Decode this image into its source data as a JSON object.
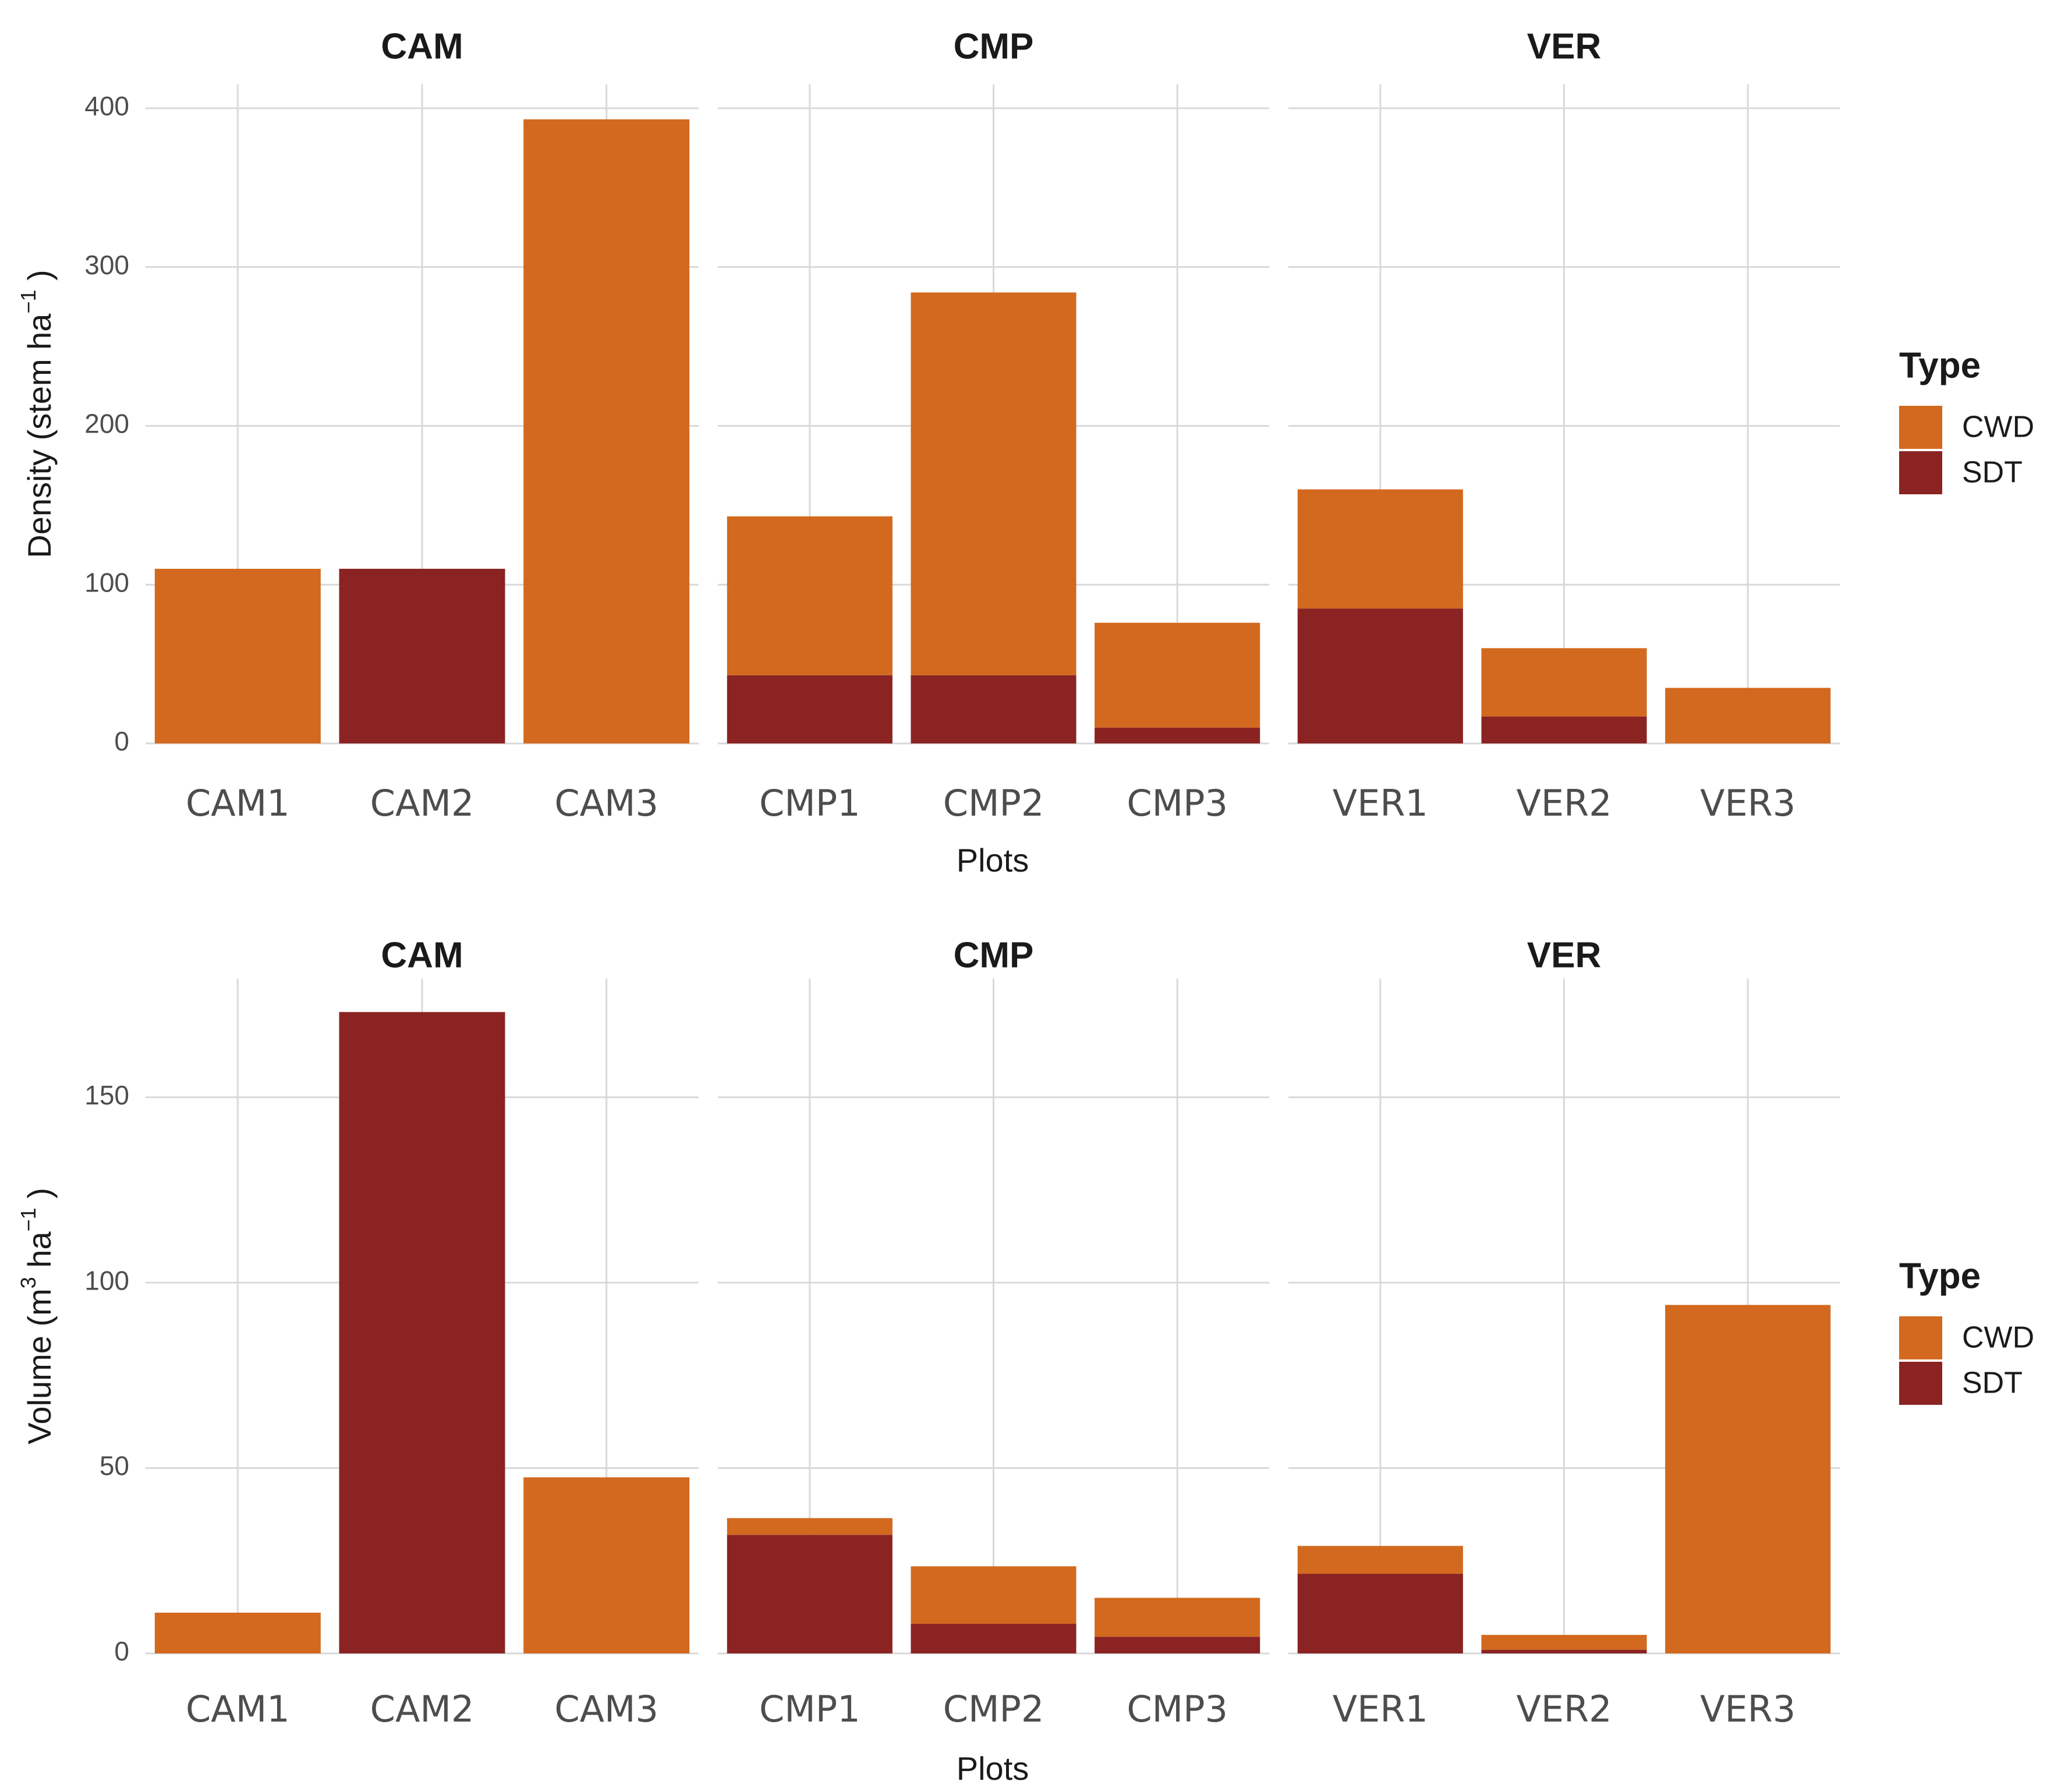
{
  "colors": {
    "CWD": "#d2691e",
    "SDT": "#8b2323"
  },
  "chart_data": [
    {
      "type": "bar",
      "stacked": true,
      "xlabel": "Plots",
      "ylabel_main": "Density (stem ha",
      "ylabel_sup": "−1",
      "ylabel_end": " )",
      "ylim": [
        0,
        415
      ],
      "yticks": [
        0,
        100,
        200,
        300,
        400
      ],
      "legend": {
        "title": "Type",
        "entries": [
          "CWD",
          "SDT"
        ],
        "position": "right"
      },
      "facets": [
        {
          "name": "CAM",
          "categories": [
            "CAM1",
            "CAM2",
            "CAM3"
          ],
          "series": [
            {
              "name": "SDT",
              "values": [
                0,
                110,
                0
              ]
            },
            {
              "name": "CWD",
              "values": [
                110,
                0,
                393
              ]
            }
          ]
        },
        {
          "name": "CMP",
          "categories": [
            "CMP1",
            "CMP2",
            "CMP3"
          ],
          "series": [
            {
              "name": "SDT",
              "values": [
                43,
                43,
                10
              ]
            },
            {
              "name": "CWD",
              "values": [
                100,
                241,
                66
              ]
            }
          ]
        },
        {
          "name": "VER",
          "categories": [
            "VER1",
            "VER2",
            "VER3"
          ],
          "series": [
            {
              "name": "SDT",
              "values": [
                85,
                17,
                0
              ]
            },
            {
              "name": "CWD",
              "values": [
                75,
                43,
                35
              ]
            }
          ]
        }
      ]
    },
    {
      "type": "bar",
      "stacked": true,
      "xlabel": "Plots",
      "ylabel_main": "Volume (m",
      "ylabel_sup": "3",
      "ylabel_mid": " ha",
      "ylabel_sup2": "−1",
      "ylabel_end": " )",
      "ylim": [
        0,
        182
      ],
      "yticks": [
        0,
        50,
        100,
        150
      ],
      "legend": {
        "title": "Type",
        "entries": [
          "CWD",
          "SDT"
        ],
        "position": "right"
      },
      "facets": [
        {
          "name": "CAM",
          "categories": [
            "CAM1",
            "CAM2",
            "CAM3"
          ],
          "series": [
            {
              "name": "SDT",
              "values": [
                0,
                173,
                0
              ]
            },
            {
              "name": "CWD",
              "values": [
                11,
                0,
                47.5
              ]
            }
          ]
        },
        {
          "name": "CMP",
          "categories": [
            "CMP1",
            "CMP2",
            "CMP3"
          ],
          "series": [
            {
              "name": "SDT",
              "values": [
                32,
                8,
                4.5
              ]
            },
            {
              "name": "CWD",
              "values": [
                4.5,
                15.5,
                10.5
              ]
            }
          ]
        },
        {
          "name": "VER",
          "categories": [
            "VER1",
            "VER2",
            "VER3"
          ],
          "series": [
            {
              "name": "SDT",
              "values": [
                21.5,
                1,
                0
              ]
            },
            {
              "name": "CWD",
              "values": [
                7.5,
                4,
                94
              ]
            }
          ]
        }
      ]
    }
  ]
}
